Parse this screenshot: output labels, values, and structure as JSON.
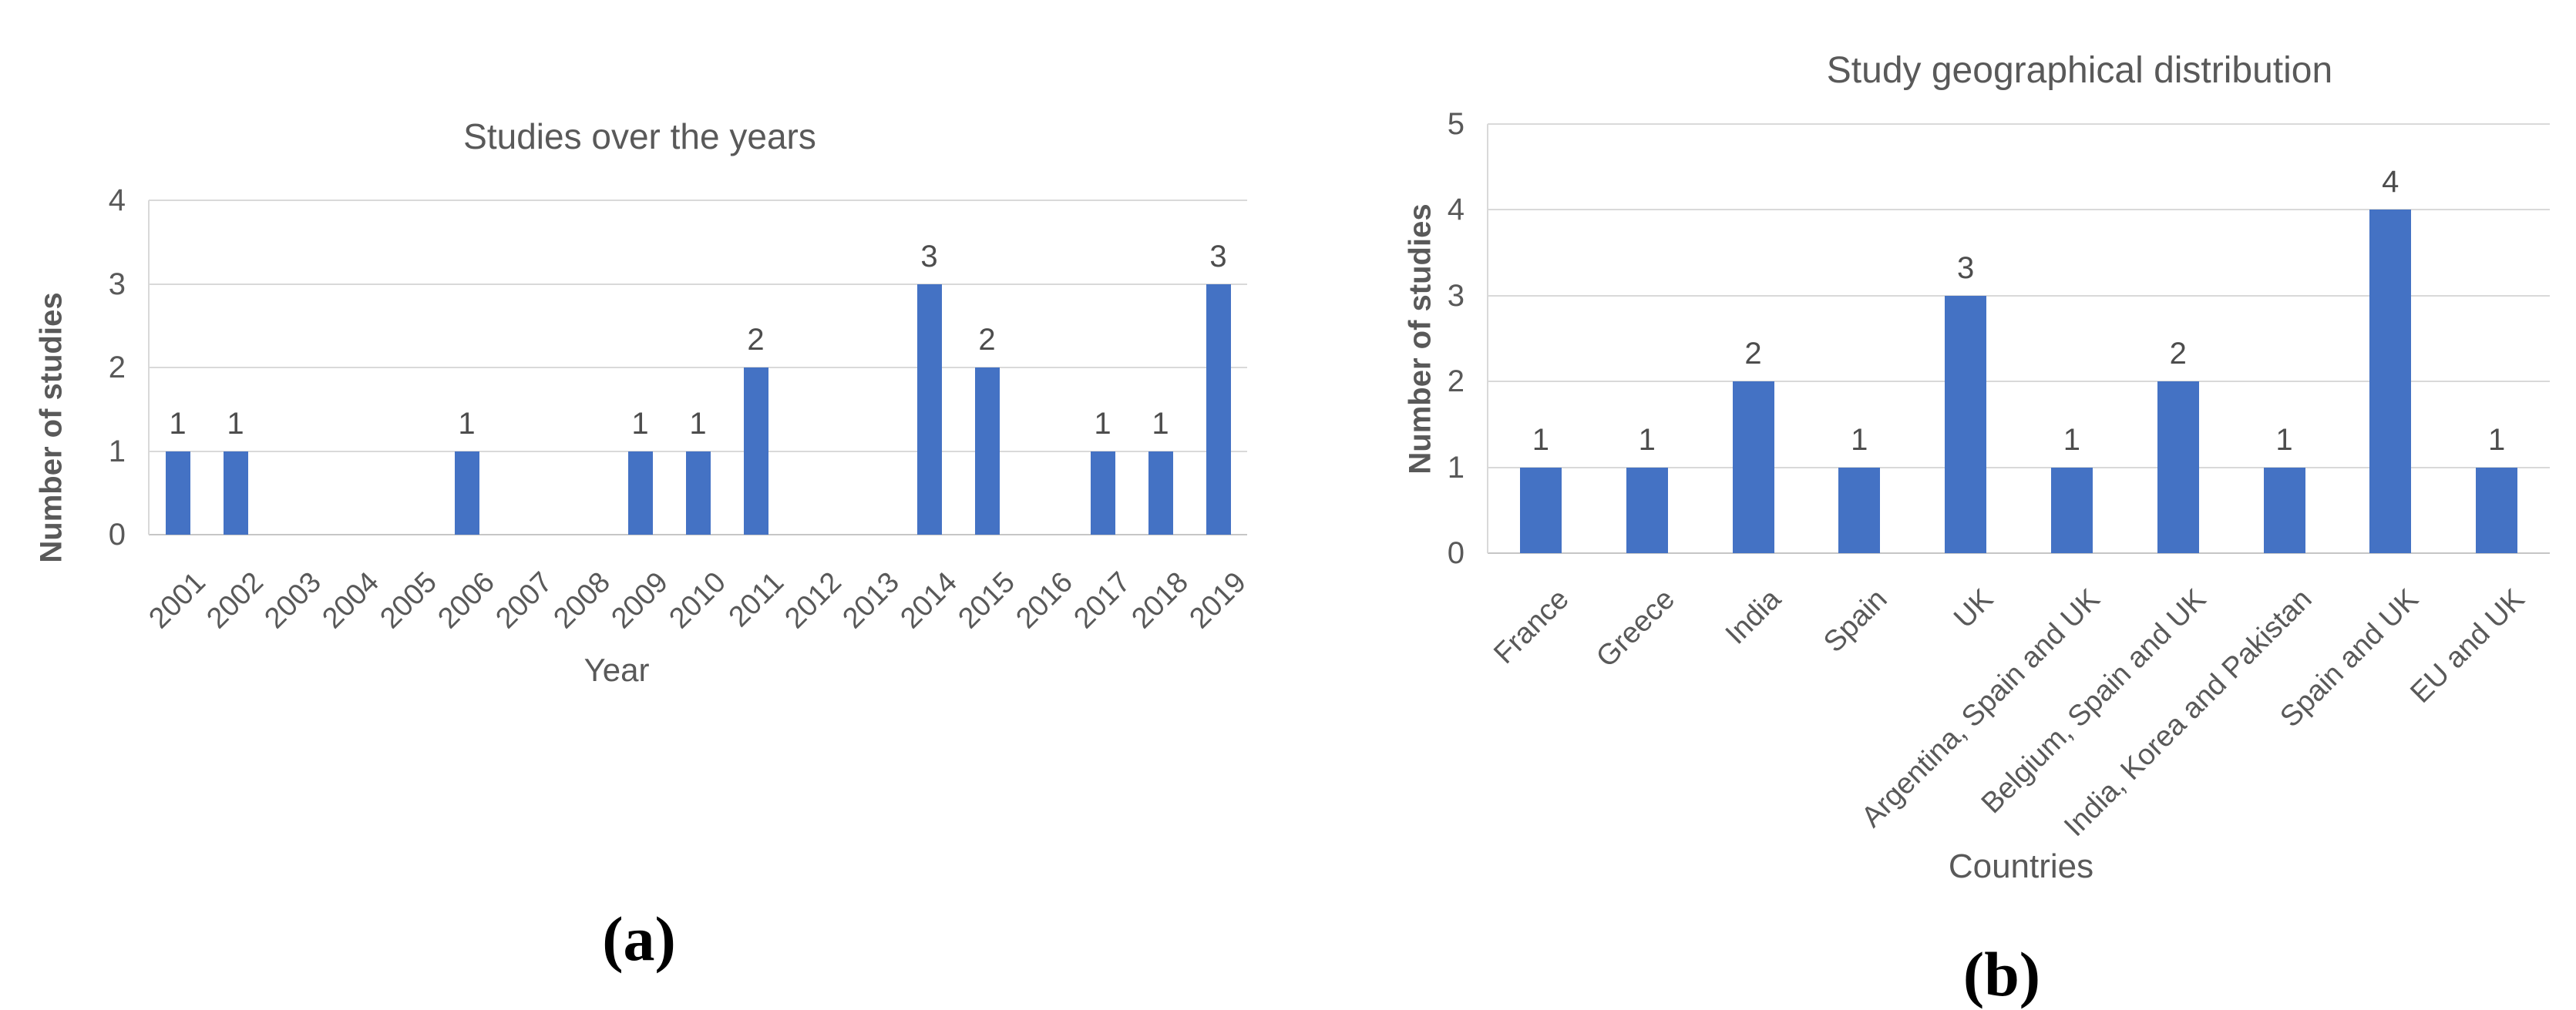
{
  "colors": {
    "bar": "#4472C4",
    "gridline": "#D9D9D9",
    "baseline": "#C6C6C6",
    "text": "#595959",
    "value_label": "#4D4D4D",
    "caption": "#000000"
  },
  "chart_data": [
    {
      "id": "studies-over-years",
      "type": "bar",
      "title": "Studies over the years",
      "xlabel": "Year",
      "ylabel": "Number of studies",
      "caption": "(a)",
      "categories": [
        "2001",
        "2002",
        "2003",
        "2004",
        "2005",
        "2006",
        "2007",
        "2008",
        "2009",
        "2010",
        "2011",
        "2012",
        "2013",
        "2014",
        "2015",
        "2016",
        "2017",
        "2018",
        "2019"
      ],
      "values": [
        1,
        1,
        0,
        0,
        0,
        1,
        0,
        0,
        1,
        1,
        2,
        0,
        0,
        3,
        2,
        0,
        1,
        1,
        3
      ],
      "ylim": [
        0,
        4
      ],
      "ytick_step": 1,
      "grid": true,
      "legend": "none",
      "bar_labels": true
    },
    {
      "id": "study-geographical-distribution",
      "type": "bar",
      "title": "Study geographical distribution",
      "xlabel": "Countries",
      "ylabel": "Number of studies",
      "caption": "(b)",
      "categories": [
        "France",
        "Greece",
        "India",
        "Spain",
        "UK",
        "Argentina, Spain and UK",
        "Belgium, Spain and UK",
        "India, Korea and Pakistan",
        "Spain and UK",
        "EU and UK"
      ],
      "values": [
        1,
        1,
        2,
        1,
        3,
        1,
        2,
        1,
        4,
        1
      ],
      "ylim": [
        0,
        5
      ],
      "ytick_step": 1,
      "grid": true,
      "legend": "none",
      "bar_labels": true
    }
  ]
}
